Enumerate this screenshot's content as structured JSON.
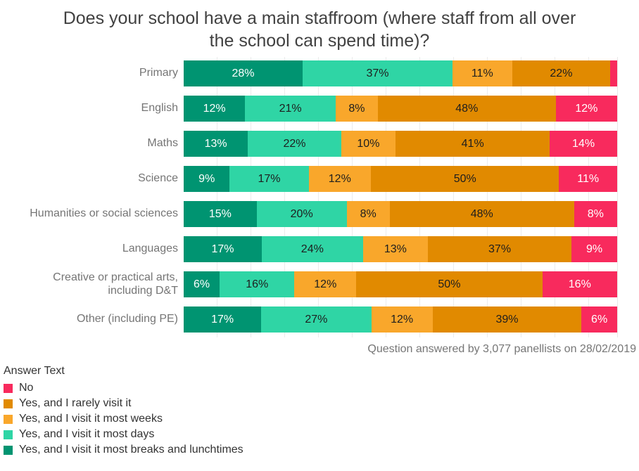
{
  "chart_data": {
    "type": "bar",
    "variant": "horizontal-stacked-100-percent",
    "title": "Does your school have a main staffroom (where staff from all over\nthe school can spend time)?",
    "footnote": "Question answered by 3,077 panellists on 28/02/2019",
    "units": "percent",
    "axis": {
      "x_min": 0,
      "x_max": 100,
      "gridlines": true,
      "gridline_color": "#ECECEC"
    },
    "categories": [
      "Primary",
      "English",
      "Maths",
      "Science",
      "Humanities or social sciences",
      "Languages",
      "Creative or practical arts,\nincluding D&T",
      "Other (including PE)"
    ],
    "series": [
      {
        "name": "Yes, and I visit it most breaks and lunchtimes",
        "color": "#009471",
        "text_color": "#FFFFFF",
        "values": [
          28,
          12,
          13,
          9,
          15,
          17,
          6,
          17
        ],
        "labels": [
          "28%",
          "12%",
          "13%",
          "9%",
          "15%",
          "17%",
          "6%",
          "17%"
        ]
      },
      {
        "name": "Yes, and I visit it most days",
        "color": "#2FD5A5",
        "text_color": "#1E1E1E",
        "values": [
          37,
          21,
          22,
          17,
          20,
          24,
          16,
          27
        ],
        "labels": [
          "37%",
          "21%",
          "22%",
          "17%",
          "20%",
          "24%",
          "16%",
          "27%"
        ]
      },
      {
        "name": "Yes, and I visit it most weeks",
        "color": "#F9A72B",
        "text_color": "#1E1E1E",
        "values": [
          11,
          8,
          10,
          12,
          8,
          13,
          12,
          12
        ],
        "labels": [
          "11%",
          "8%",
          "10%",
          "12%",
          "8%",
          "13%",
          "12%",
          "12%"
        ]
      },
      {
        "name": "Yes, and I rarely visit it",
        "color": "#E18A00",
        "text_color": "#1E1E1E",
        "values": [
          22,
          48,
          41,
          50,
          48,
          37,
          50,
          39
        ],
        "labels": [
          "22%",
          "48%",
          "41%",
          "50%",
          "48%",
          "37%",
          "50%",
          "39%"
        ]
      },
      {
        "name": "No",
        "color": "#F82A5D",
        "text_color": "#FFFFFF",
        "values": [
          2,
          12,
          14,
          11,
          8,
          9,
          16,
          6
        ],
        "labels": [
          "",
          "12%",
          "14%",
          "11%",
          "8%",
          "9%",
          "16%",
          "6%"
        ]
      }
    ],
    "legend": {
      "title": "Answer Text",
      "position": "bottom-left",
      "order": "reverse-of-stacking"
    }
  }
}
